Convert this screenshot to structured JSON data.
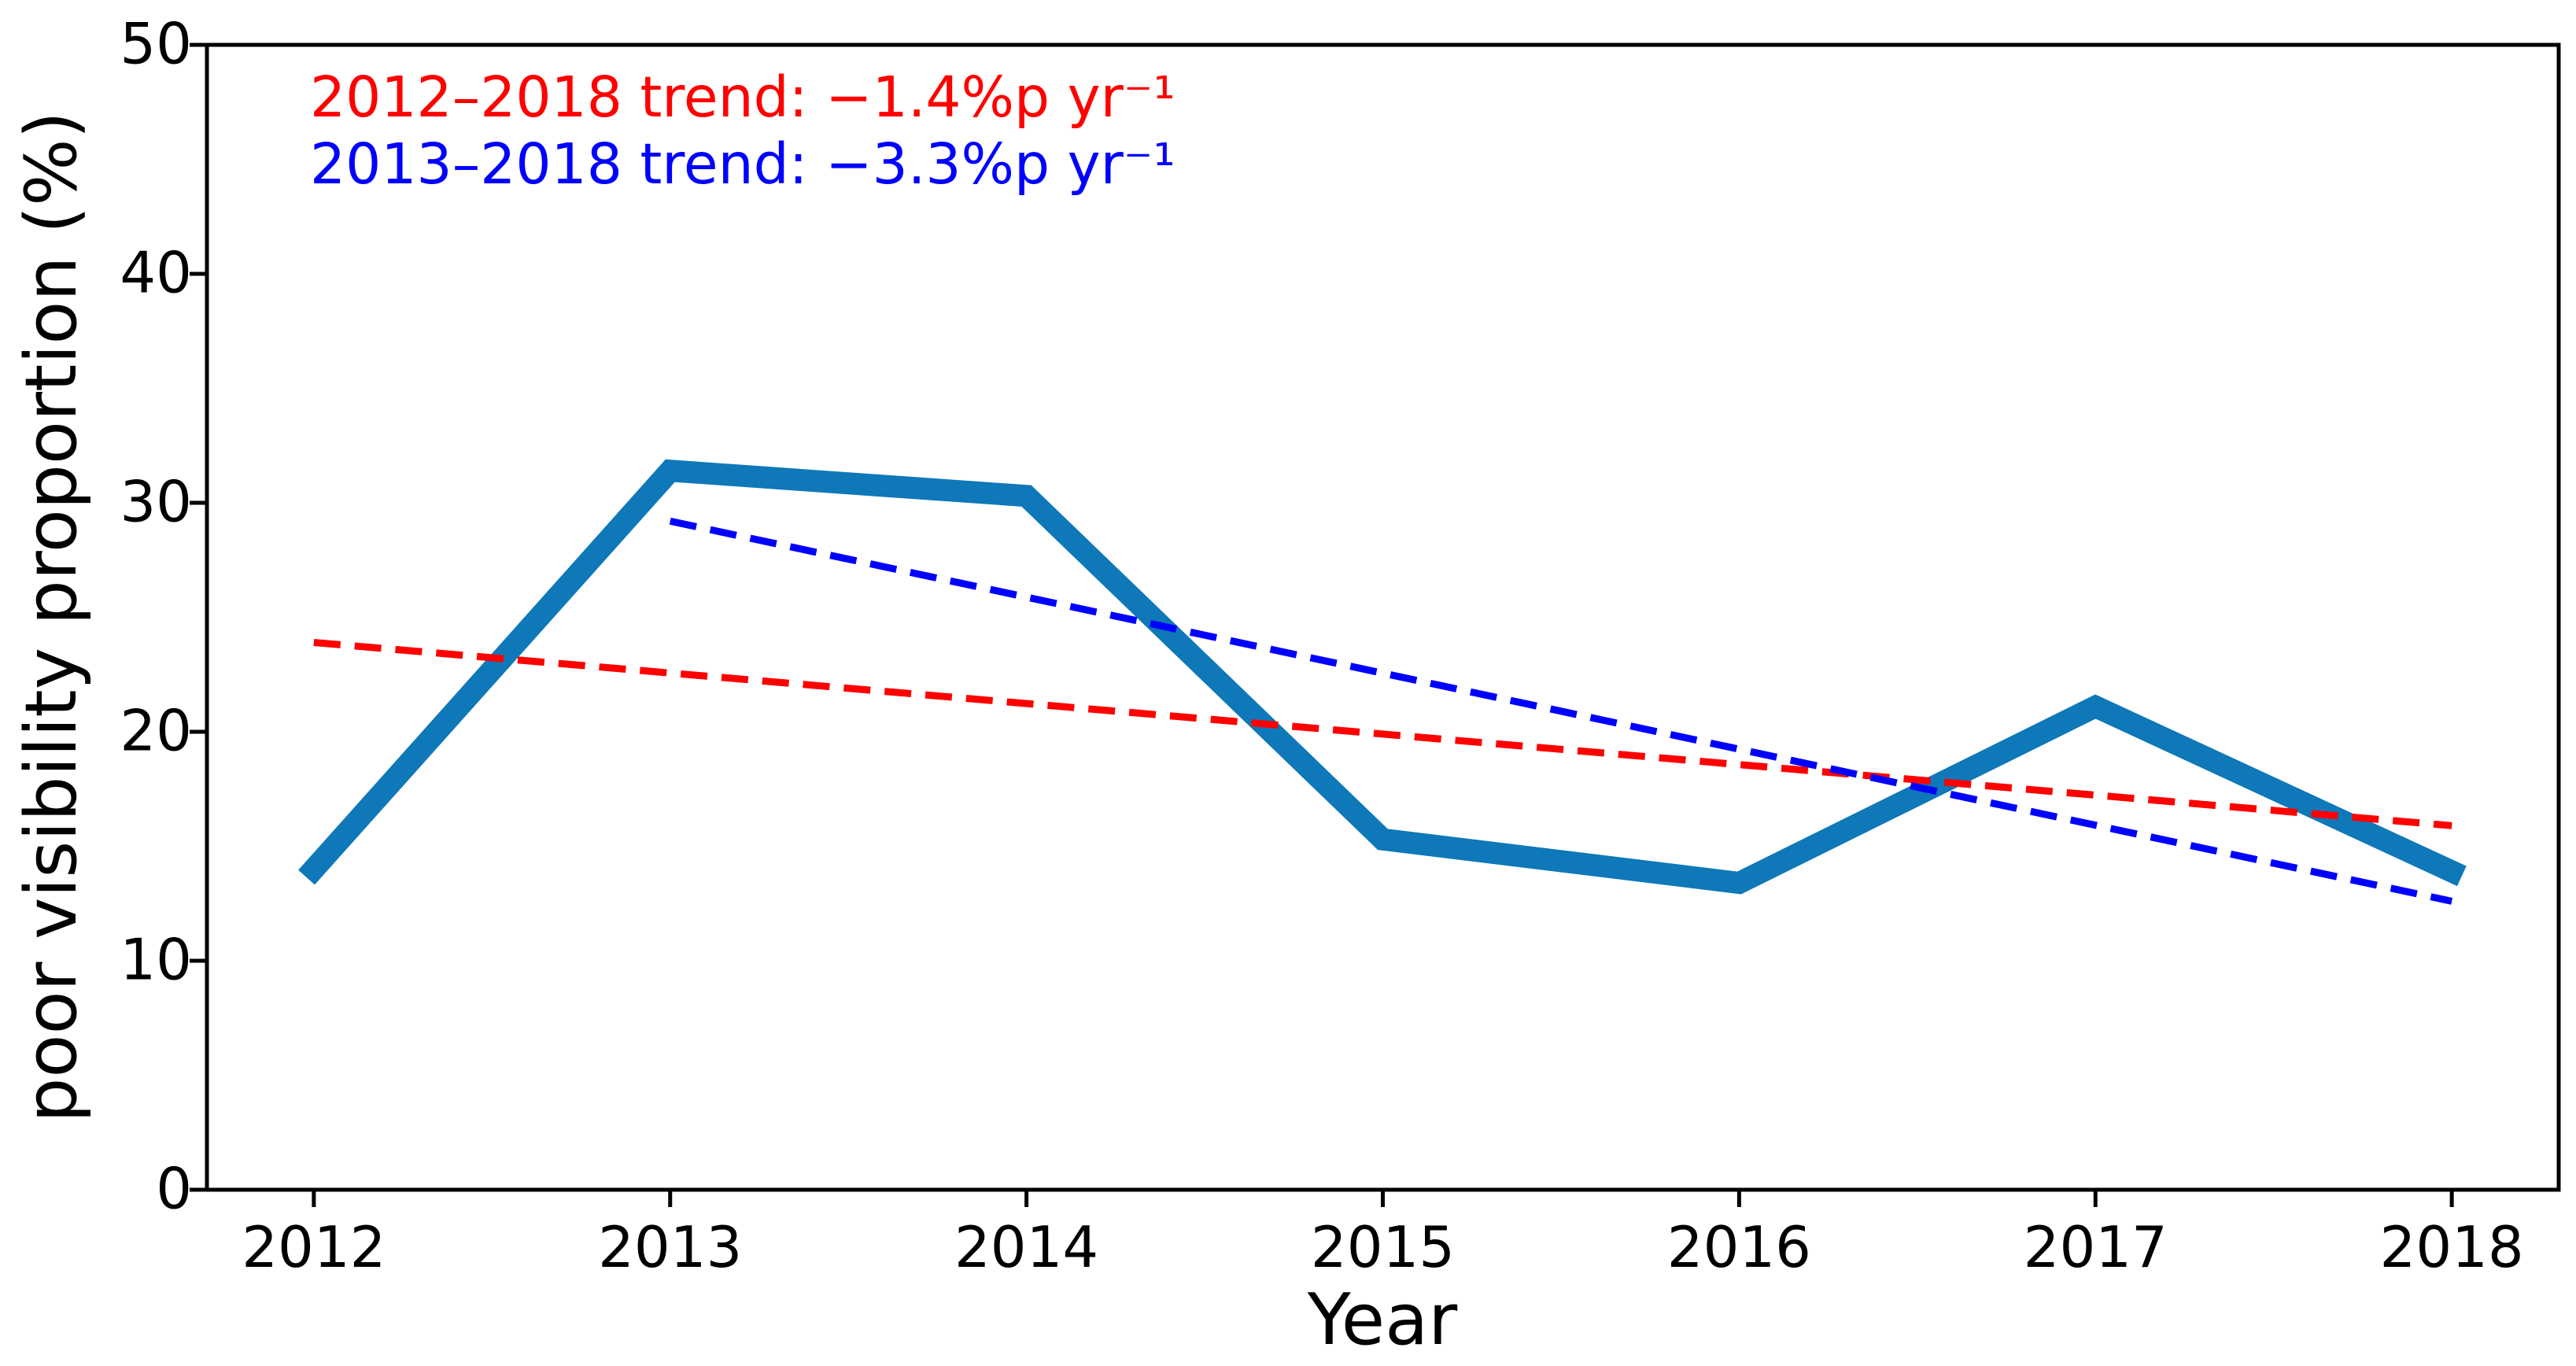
{
  "figure": {
    "background": "#ffffff",
    "text_color": "#000000"
  },
  "chart_data": {
    "type": "line",
    "title": "",
    "xlabel": "Year",
    "ylabel": "poor visibility proportion (%)",
    "x": [
      2012,
      2013,
      2014,
      2015,
      2016,
      2017,
      2018
    ],
    "xtick_labels": [
      "2012",
      "2013",
      "2014",
      "2015",
      "2016",
      "2017",
      "2018"
    ],
    "yticks": [
      0,
      10,
      20,
      30,
      40,
      50
    ],
    "ytick_labels": [
      "0",
      "10",
      "20",
      "30",
      "40",
      "50"
    ],
    "xlim": [
      2011.7,
      2018.3
    ],
    "ylim": [
      0,
      50
    ],
    "grid": false,
    "legend": "none",
    "series": [
      {
        "name": "poor visibility proportion",
        "style": "solid",
        "color": "#0e78b8",
        "x": [
          2012,
          2013,
          2014,
          2015,
          2016,
          2017,
          2018
        ],
        "values": [
          14.0,
          31.4,
          30.3,
          15.3,
          13.4,
          21.1,
          13.9
        ]
      },
      {
        "name": "2012-2018 linear trend",
        "style": "dashed",
        "color": "#ff0000",
        "x": [
          2012,
          2018
        ],
        "values": [
          23.9,
          15.9
        ]
      },
      {
        "name": "2013-2018 linear trend",
        "style": "dashed",
        "color": "#0000ff",
        "x": [
          2013,
          2018
        ],
        "values": [
          29.2,
          12.6
        ]
      }
    ],
    "annotations": [
      {
        "text": "2012–2018 trend: −1.4%p yr⁻¹",
        "color": "#ff0000"
      },
      {
        "text": "2013–2018 trend: −3.3%p yr⁻¹",
        "color": "#0000ff"
      }
    ]
  }
}
